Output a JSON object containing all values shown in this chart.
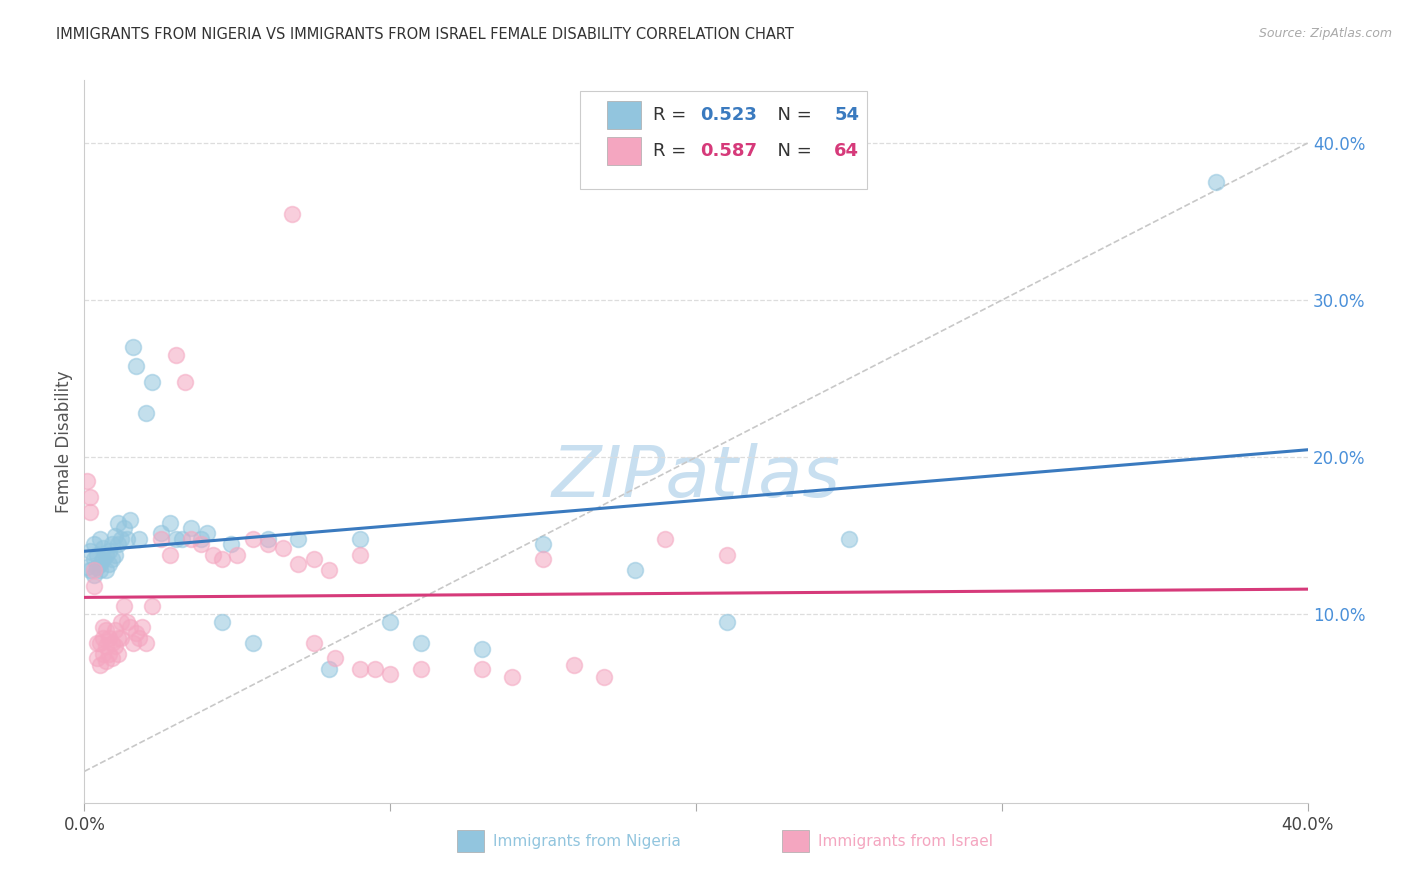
{
  "title": "IMMIGRANTS FROM NIGERIA VS IMMIGRANTS FROM ISRAEL FEMALE DISABILITY CORRELATION CHART",
  "source": "Source: ZipAtlas.com",
  "ylabel": "Female Disability",
  "xlim": [
    0.0,
    0.4
  ],
  "ylim": [
    -0.02,
    0.44
  ],
  "ytick_right": [
    0.1,
    0.2,
    0.3,
    0.4
  ],
  "ytick_right_labels": [
    "10.0%",
    "20.0%",
    "30.0%",
    "40.0%"
  ],
  "R1": "0.523",
  "N1": "54",
  "R2": "0.587",
  "N2": "64",
  "blue_scatter_color": "#92c5de",
  "pink_scatter_color": "#f4a6c0",
  "blue_line_color": "#3a7abf",
  "pink_line_color": "#d63a7a",
  "ref_line_color": "#c8c8c8",
  "grid_color": "#dddddd",
  "watermark_color": "#c8dff0",
  "background_color": "#ffffff",
  "nigeria_x": [
    0.001,
    0.002,
    0.002,
    0.003,
    0.003,
    0.003,
    0.004,
    0.004,
    0.005,
    0.005,
    0.005,
    0.006,
    0.006,
    0.007,
    0.007,
    0.008,
    0.008,
    0.009,
    0.009,
    0.01,
    0.01,
    0.011,
    0.011,
    0.012,
    0.013,
    0.014,
    0.015,
    0.016,
    0.017,
    0.018,
    0.02,
    0.022,
    0.025,
    0.028,
    0.03,
    0.032,
    0.035,
    0.038,
    0.04,
    0.045,
    0.048,
    0.055,
    0.06,
    0.07,
    0.08,
    0.09,
    0.1,
    0.11,
    0.13,
    0.15,
    0.18,
    0.21,
    0.25,
    0.37
  ],
  "nigeria_y": [
    0.13,
    0.128,
    0.14,
    0.125,
    0.135,
    0.145,
    0.13,
    0.138,
    0.128,
    0.132,
    0.148,
    0.135,
    0.142,
    0.128,
    0.138,
    0.132,
    0.14,
    0.135,
    0.145,
    0.138,
    0.15,
    0.145,
    0.158,
    0.148,
    0.155,
    0.148,
    0.16,
    0.27,
    0.258,
    0.148,
    0.228,
    0.248,
    0.152,
    0.158,
    0.148,
    0.148,
    0.155,
    0.148,
    0.152,
    0.095,
    0.145,
    0.082,
    0.148,
    0.148,
    0.065,
    0.148,
    0.095,
    0.082,
    0.078,
    0.145,
    0.128,
    0.095,
    0.148,
    0.375
  ],
  "israel_x": [
    0.001,
    0.002,
    0.002,
    0.003,
    0.003,
    0.004,
    0.004,
    0.005,
    0.005,
    0.006,
    0.006,
    0.006,
    0.007,
    0.007,
    0.007,
    0.008,
    0.008,
    0.009,
    0.009,
    0.01,
    0.01,
    0.011,
    0.011,
    0.012,
    0.012,
    0.013,
    0.014,
    0.015,
    0.016,
    0.017,
    0.018,
    0.019,
    0.02,
    0.022,
    0.025,
    0.028,
    0.03,
    0.033,
    0.035,
    0.038,
    0.042,
    0.045,
    0.05,
    0.055,
    0.06,
    0.065,
    0.07,
    0.075,
    0.08,
    0.09,
    0.095,
    0.1,
    0.11,
    0.13,
    0.14,
    0.15,
    0.16,
    0.17,
    0.19,
    0.21,
    0.068,
    0.075,
    0.082,
    0.09
  ],
  "israel_y": [
    0.185,
    0.175,
    0.165,
    0.128,
    0.118,
    0.082,
    0.072,
    0.082,
    0.068,
    0.092,
    0.085,
    0.075,
    0.09,
    0.08,
    0.07,
    0.085,
    0.075,
    0.082,
    0.072,
    0.09,
    0.08,
    0.085,
    0.075,
    0.095,
    0.085,
    0.105,
    0.095,
    0.092,
    0.082,
    0.088,
    0.085,
    0.092,
    0.082,
    0.105,
    0.148,
    0.138,
    0.265,
    0.248,
    0.148,
    0.145,
    0.138,
    0.135,
    0.138,
    0.148,
    0.145,
    0.142,
    0.132,
    0.135,
    0.128,
    0.138,
    0.065,
    0.062,
    0.065,
    0.065,
    0.06,
    0.135,
    0.068,
    0.06,
    0.148,
    0.138,
    0.355,
    0.082,
    0.072,
    0.065
  ]
}
